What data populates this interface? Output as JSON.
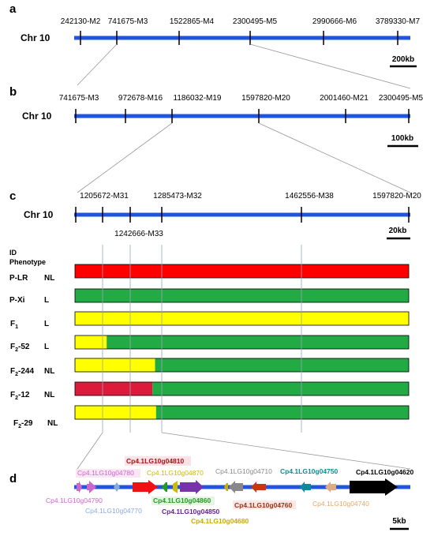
{
  "colors": {
    "chromosome": "#2255dd",
    "red": "#ff0000",
    "deep_red": "#dd1a3c",
    "green": "#22aa44",
    "yellow": "#ffff00",
    "guide_line": "#9aa5b4",
    "connector": "#999999"
  },
  "panel_a": {
    "letter": "a",
    "chromosome": "Chr 10",
    "markers": [
      "242130-M2",
      "741675-M3",
      "1522865-M4",
      "2300495-M5",
      "2990666-M6",
      "3789330-M7"
    ],
    "scale": "200kb"
  },
  "panel_b": {
    "letter": "b",
    "chromosome": "Chr 10",
    "markers": [
      "741675-M3",
      "972678-M16",
      "1186032-M19",
      "1597820-M20",
      "2001460-M21",
      "2300495-M5"
    ],
    "scale": "100kb"
  },
  "panel_c": {
    "letter": "c",
    "chromosome": "Chr 10",
    "markers_top": [
      "1205672-M31",
      "1285473-M32",
      "1462556-M38",
      "1597820-M20"
    ],
    "marker_bottom": "1242666-M33",
    "scale": "20kb",
    "header_id": "ID",
    "header_phenotype": "Phenotype",
    "rows": [
      {
        "id_main": "P-LR",
        "id_sub": "",
        "phenotype": "NL",
        "segments": [
          {
            "color": "red",
            "from": 0,
            "to": 1
          }
        ]
      },
      {
        "id_main": "P-Xi",
        "id_sub": "",
        "phenotype": "L",
        "segments": [
          {
            "color": "green",
            "from": 0,
            "to": 1
          }
        ]
      },
      {
        "id_main": "F",
        "id_sub": "1",
        "phenotype": "L",
        "segments": [
          {
            "color": "yellow",
            "from": 0,
            "to": 1
          }
        ]
      },
      {
        "id_main": "F",
        "id_sub": "2",
        "id_tail": "-52",
        "phenotype": "L",
        "segments": [
          {
            "color": "yellow",
            "from": 0,
            "to": 0.095
          },
          {
            "color": "green",
            "from": 0.095,
            "to": 1
          }
        ]
      },
      {
        "id_main": "F",
        "id_sub": "2",
        "id_tail": "-244",
        "phenotype": "NL",
        "segments": [
          {
            "color": "yellow",
            "from": 0,
            "to": 0.24
          },
          {
            "color": "green",
            "from": 0.24,
            "to": 1
          }
        ]
      },
      {
        "id_main": "F",
        "id_sub": "2",
        "id_tail": "-12",
        "phenotype": "NL",
        "segments": [
          {
            "color": "deep_red",
            "from": 0,
            "to": 0.232
          },
          {
            "color": "green",
            "from": 0.232,
            "to": 1
          }
        ]
      },
      {
        "id_main": "F",
        "id_sub": "2",
        "id_tail": "-29",
        "phenotype": "NL",
        "segments": [
          {
            "color": "yellow",
            "from": 0,
            "to": 0.243
          },
          {
            "color": "green",
            "from": 0.243,
            "to": 1
          }
        ]
      }
    ]
  },
  "panel_d": {
    "letter": "d",
    "scale": "5kb",
    "genes_top": [
      {
        "name": "Cp4.1LG10g04780",
        "color": "#cc66cc"
      },
      {
        "name": "Cp4.1LG10g04810",
        "color": "#aa1111"
      },
      {
        "name": "Cp4.1LG10g04870",
        "color": "#ccbb00"
      },
      {
        "name": "Cp4.1LG10g04710",
        "color": "#888888"
      },
      {
        "name": "Cp4.1LG10g04750",
        "color": "#118899"
      },
      {
        "name": "Cp4.1LG10g04620",
        "color": "#000000"
      }
    ],
    "genes_bottom": [
      {
        "name": "Cp4.1LG10g04790",
        "color": "#cc66cc"
      },
      {
        "name": "Cp4.1LG10g04860",
        "color": "#229922"
      },
      {
        "name": "Cp4.1LG10g04760",
        "color": "#993311"
      },
      {
        "name": "Cp4.1LG10g04740",
        "color": "#ddaa66"
      },
      {
        "name": "Cp4.1LG10g04770",
        "color": "#88aadd"
      },
      {
        "name": "Cp4.1LG10g04850",
        "color": "#662299"
      },
      {
        "name": "Cp4.1LG10g04680",
        "color": "#ccaa00"
      }
    ]
  }
}
